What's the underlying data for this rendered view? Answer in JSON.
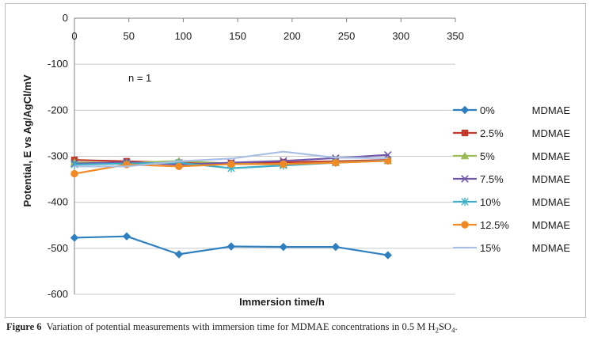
{
  "chart_data": {
    "type": "line",
    "title": "",
    "xlabel": "Immersion time/h",
    "ylabel": "Potential, E vs Ag/AgCl/mV",
    "xlim": [
      0,
      350
    ],
    "ylim": [
      -600,
      0
    ],
    "xticks": [
      0,
      50,
      100,
      150,
      200,
      250,
      300,
      350
    ],
    "yticks": [
      0,
      -100,
      -200,
      -300,
      -400,
      -500,
      -600
    ],
    "x_axis_position": "top",
    "annotation": "n = 1",
    "legend_position": "right",
    "series": [
      {
        "name": "0%",
        "suffix": "MDMAE",
        "color": "#2e7fbf",
        "marker": "diamond",
        "x": [
          0,
          48,
          96,
          144,
          192,
          240,
          288
        ],
        "values": [
          -477,
          -474,
          -513,
          -496,
          -497,
          -497,
          -515
        ]
      },
      {
        "name": "2.5%",
        "suffix": "MDMAE",
        "color": "#c0392b",
        "marker": "square",
        "x": [
          0,
          48,
          96,
          144,
          192,
          240,
          288
        ],
        "values": [
          -308,
          -311,
          -314,
          -315,
          -313,
          -311,
          -308
        ]
      },
      {
        "name": "5%",
        "suffix": "MDMAE",
        "color": "#9bbb59",
        "marker": "triangle",
        "x": [
          0,
          48,
          96,
          144,
          192,
          240,
          288
        ],
        "values": [
          -313,
          -315,
          -310,
          -316,
          -318,
          -313,
          -310
        ]
      },
      {
        "name": "7.5%",
        "suffix": "MDMAE",
        "color": "#7057a8",
        "marker": "x",
        "x": [
          0,
          48,
          96,
          144,
          192,
          240,
          288
        ],
        "values": [
          -316,
          -313,
          -318,
          -314,
          -310,
          -304,
          -297
        ]
      },
      {
        "name": "10%",
        "suffix": "MDMAE",
        "color": "#3fb0c7",
        "marker": "star",
        "x": [
          0,
          48,
          96,
          144,
          192,
          240,
          288
        ],
        "values": [
          -318,
          -316,
          -314,
          -326,
          -320,
          -314,
          -309
        ]
      },
      {
        "name": "12.5%",
        "suffix": "MDMAE",
        "color": "#f08a24",
        "marker": "circle",
        "x": [
          0,
          48,
          96,
          144,
          192,
          240,
          288
        ],
        "values": [
          -338,
          -318,
          -322,
          -317,
          -317,
          -314,
          -310
        ]
      },
      {
        "name": "15%",
        "suffix": "MDMAE",
        "color": "#a9bfe4",
        "marker": "line",
        "x": [
          0,
          48,
          96,
          144,
          192,
          240,
          288
        ],
        "values": [
          -322,
          -322,
          -311,
          -305,
          -290,
          -303,
          -304
        ]
      }
    ]
  },
  "caption": {
    "label": "Figure 6",
    "text_before": "Variation of potential measurements with immersion time for MDMAE concentrations in 0.5 M H",
    "sub1": "2",
    "mid": "SO",
    "sub2": "4",
    "end": "."
  }
}
